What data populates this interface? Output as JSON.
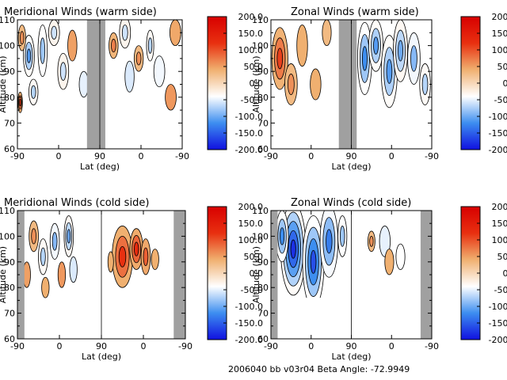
{
  "footer": "2006040 bb v03r04   Beta Angle: -72.9949",
  "panels": [
    {
      "title": "Meridional Winds (warm side)",
      "xlabel": "Lat (deg)",
      "ylabel": "Altitude (km)",
      "gap_color": "#a0a0a0"
    },
    {
      "title": "Zonal Winds (warm side)",
      "xlabel": "Lat (deg)",
      "ylabel": "Altitude (km)",
      "gap_color": "#a0a0a0"
    },
    {
      "title": "Meridional Winds (cold side)",
      "xlabel": "Lat (deg)",
      "ylabel": "Altitude (km)",
      "gap_color": "#a0a0a0"
    },
    {
      "title": "Zonal Winds (cold side)",
      "xlabel": "Lat (deg)",
      "ylabel": "Altitude (km)",
      "gap_color": "#a0a0a0"
    }
  ],
  "chart_data": {
    "type": "heatmap",
    "x_ticks": [
      "-90",
      "0",
      "90",
      "0",
      "-90"
    ],
    "y_ticks": [
      "60",
      "70",
      "80",
      "90",
      "100",
      "110"
    ],
    "ylim": [
      60,
      110
    ],
    "colorbar": {
      "labels": [
        "200.0",
        "150.0",
        "100.0",
        "50.0",
        "0.0",
        "-50.0",
        "-100.0",
        "-150.0",
        "-200.0"
      ],
      "range": [
        -200,
        200
      ],
      "stops": [
        "#1010e0",
        "#3d8ef0",
        "#ffffff",
        "#f0b070",
        "#e83010",
        "#d80000"
      ]
    },
    "panels": [
      {
        "blobs": [
          {
            "lat": -65,
            "alt": 96,
            "w": 12,
            "h": 8,
            "v": -110
          },
          {
            "lat": -80,
            "alt": 103,
            "w": 8,
            "h": 5,
            "v": 60
          },
          {
            "lat": -55,
            "alt": 82,
            "w": 10,
            "h": 5,
            "v": -70
          },
          {
            "lat": -35,
            "alt": 98,
            "w": 10,
            "h": 10,
            "v": -80
          },
          {
            "lat": -10,
            "alt": 105,
            "w": 12,
            "h": 5,
            "v": -60
          },
          {
            "lat": 10,
            "alt": 90,
            "w": 12,
            "h": 7,
            "v": -60
          },
          {
            "lat": 30,
            "alt": 100,
            "w": 10,
            "h": 6,
            "v": 50
          },
          {
            "lat": 55,
            "alt": 85,
            "w": 10,
            "h": 5,
            "v": -50
          },
          {
            "lat": -84,
            "alt": 78,
            "w": 5,
            "h": 4,
            "v": 120
          },
          {
            "lat": 120,
            "alt": 100,
            "w": 10,
            "h": 5,
            "v": 70
          },
          {
            "lat": 145,
            "alt": 105,
            "w": 12,
            "h": 6,
            "v": -60
          },
          {
            "lat": 155,
            "alt": 88,
            "w": 10,
            "h": 6,
            "v": -55
          },
          {
            "lat": 175,
            "alt": 95,
            "w": 10,
            "h": 5,
            "v": 60
          },
          {
            "lat": 200,
            "alt": 100,
            "w": 8,
            "h": 6,
            "v": -70
          },
          {
            "lat": 220,
            "alt": 90,
            "w": 12,
            "h": 6,
            "v": -45
          },
          {
            "lat": 245,
            "alt": 80,
            "w": 12,
            "h": 5,
            "v": 55
          },
          {
            "lat": 255,
            "alt": 105,
            "w": 12,
            "h": 5,
            "v": 45
          }
        ],
        "gaps": [
          [
            62,
            102
          ]
        ],
        "data_xrange": [
          -90,
          270
        ],
        "data_yrange": [
          72,
          110
        ]
      },
      {
        "blobs": [
          {
            "lat": -70,
            "alt": 95,
            "w": 18,
            "h": 12,
            "v": 110
          },
          {
            "lat": -45,
            "alt": 85,
            "w": 14,
            "h": 8,
            "v": 60
          },
          {
            "lat": -20,
            "alt": 100,
            "w": 12,
            "h": 8,
            "v": 40
          },
          {
            "lat": 10,
            "alt": 85,
            "w": 12,
            "h": 6,
            "v": 40
          },
          {
            "lat": 35,
            "alt": 105,
            "w": 10,
            "h": 5,
            "v": 30
          },
          {
            "lat": 120,
            "alt": 95,
            "w": 16,
            "h": 14,
            "v": -120
          },
          {
            "lat": 145,
            "alt": 100,
            "w": 16,
            "h": 10,
            "v": -110
          },
          {
            "lat": 175,
            "alt": 90,
            "w": 18,
            "h": 14,
            "v": -110
          },
          {
            "lat": 200,
            "alt": 98,
            "w": 16,
            "h": 12,
            "v": -100
          },
          {
            "lat": 230,
            "alt": 95,
            "w": 14,
            "h": 10,
            "v": -90
          },
          {
            "lat": 255,
            "alt": 85,
            "w": 12,
            "h": 8,
            "v": -70
          }
        ],
        "gaps": [
          [
            62,
            102
          ]
        ],
        "data_xrange": [
          -90,
          270
        ],
        "data_yrange": [
          72,
          110
        ]
      },
      {
        "blobs": [
          {
            "lat": -55,
            "alt": 100,
            "w": 10,
            "h": 6,
            "v": 60
          },
          {
            "lat": -35,
            "alt": 92,
            "w": 10,
            "h": 7,
            "v": -70
          },
          {
            "lat": -10,
            "alt": 98,
            "w": 10,
            "h": 7,
            "v": -90
          },
          {
            "lat": 5,
            "alt": 85,
            "w": 8,
            "h": 5,
            "v": 55
          },
          {
            "lat": 20,
            "alt": 100,
            "w": 10,
            "h": 8,
            "v": -100
          },
          {
            "lat": 30,
            "alt": 87,
            "w": 8,
            "h": 5,
            "v": -55
          },
          {
            "lat": -70,
            "alt": 85,
            "w": 8,
            "h": 5,
            "v": 50
          },
          {
            "lat": -30,
            "alt": 80,
            "w": 8,
            "h": 4,
            "v": 40
          },
          {
            "lat": 135,
            "alt": 92,
            "w": 22,
            "h": 12,
            "v": 120
          },
          {
            "lat": 165,
            "alt": 95,
            "w": 14,
            "h": 8,
            "v": 130
          },
          {
            "lat": 185,
            "alt": 92,
            "w": 10,
            "h": 7,
            "v": 90
          },
          {
            "lat": 110,
            "alt": 90,
            "w": 6,
            "h": 4,
            "v": 40
          },
          {
            "lat": 205,
            "alt": 91,
            "w": 8,
            "h": 4,
            "v": 40
          }
        ],
        "gaps": [
          [
            -90,
            -75
          ],
          [
            245,
            270
          ]
        ],
        "data_xrange": [
          -90,
          270
        ],
        "data_yrange": [
          75,
          110
        ]
      },
      {
        "blobs": [
          {
            "lat": -40,
            "alt": 95,
            "w": 28,
            "h": 18,
            "v": -180
          },
          {
            "lat": 5,
            "alt": 90,
            "w": 24,
            "h": 18,
            "v": -160
          },
          {
            "lat": 40,
            "alt": 98,
            "w": 20,
            "h": 14,
            "v": -130
          },
          {
            "lat": -65,
            "alt": 100,
            "w": 14,
            "h": 10,
            "v": -120
          },
          {
            "lat": 70,
            "alt": 100,
            "w": 10,
            "h": 8,
            "v": -80
          },
          {
            "lat": 135,
            "alt": 98,
            "w": 8,
            "h": 4,
            "v": 60
          },
          {
            "lat": 165,
            "alt": 98,
            "w": 12,
            "h": 6,
            "v": -50
          },
          {
            "lat": 175,
            "alt": 90,
            "w": 10,
            "h": 5,
            "v": 40
          },
          {
            "lat": 200,
            "alt": 92,
            "w": 10,
            "h": 5,
            "v": -40
          }
        ],
        "gaps": [
          [
            -90,
            -75
          ],
          [
            245,
            270
          ]
        ],
        "data_xrange": [
          -90,
          270
        ],
        "data_yrange": [
          76,
          110
        ]
      }
    ]
  }
}
